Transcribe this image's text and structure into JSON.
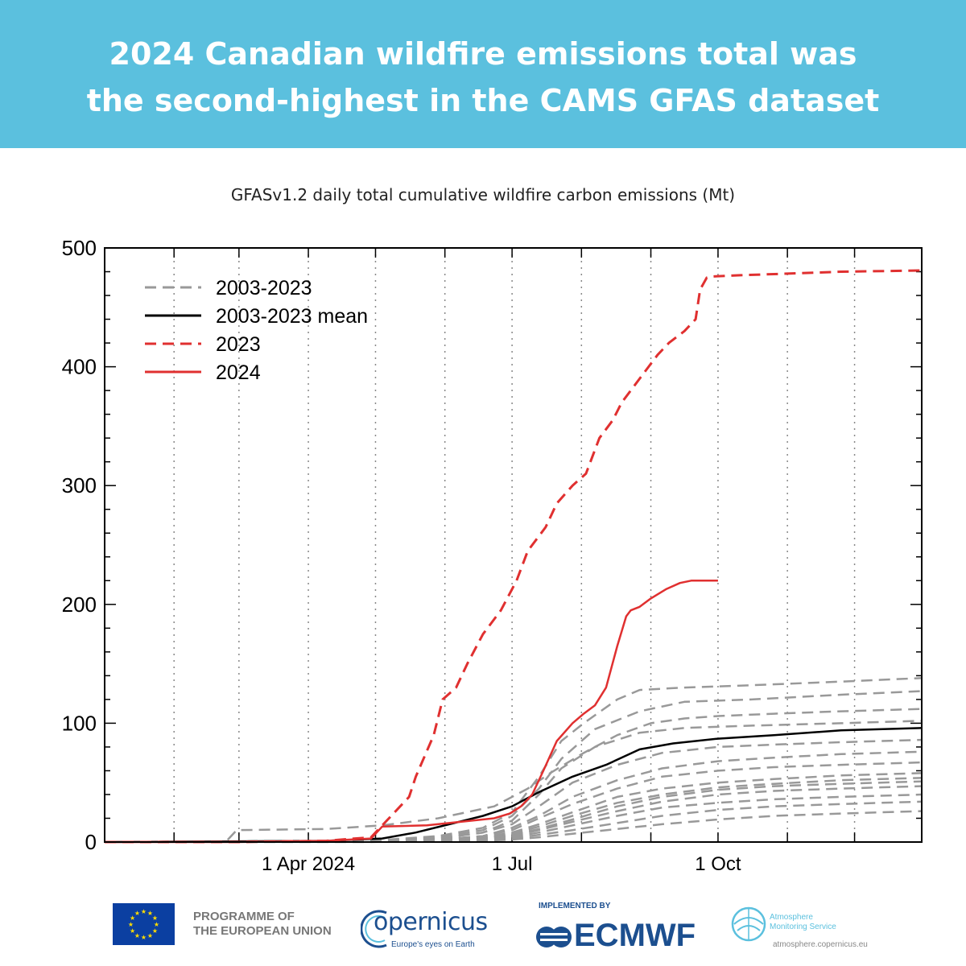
{
  "banner": {
    "title_line1": "2024 Canadian wildfire emissions total was",
    "title_line2": "the second-highest in the CAMS GFAS dataset",
    "bg_color": "#5bc0de"
  },
  "chart_title": "GFASv1.2 daily total cumulative wildfire carbon emissions (Mt)",
  "chart_data": {
    "type": "line",
    "title": "GFASv1.2 daily total cumulative wildfire carbon emissions (Mt)",
    "xlabel": "",
    "ylabel": "",
    "x_unit": "day of year",
    "xlim": [
      1,
      366
    ],
    "ylim": [
      0,
      500
    ],
    "grid": "vertical dotted lines at month starts",
    "legend_position": "top-left",
    "y_ticks": [
      0,
      100,
      200,
      300,
      400,
      500
    ],
    "x_ticks": [
      {
        "day": 92,
        "label": "1 Apr 2024"
      },
      {
        "day": 183,
        "label": "1 Jul"
      },
      {
        "day": 275,
        "label": "1 Oct"
      }
    ],
    "month_starts": [
      32,
      61,
      92,
      122,
      153,
      183,
      214,
      245,
      275,
      306,
      336
    ],
    "legend": [
      {
        "label": "2003-2023",
        "color": "#999999",
        "dash": true
      },
      {
        "label": "2003-2023 mean",
        "color": "#000000",
        "dash": false
      },
      {
        "label": "2023",
        "color": "#e03030",
        "dash": true
      },
      {
        "label": "2024",
        "color": "#e03030",
        "dash": false
      }
    ],
    "series": [
      {
        "name": "2023",
        "color": "#e03030",
        "dash": true,
        "width": 3,
        "x": [
          1,
          60,
          100,
          120,
          128,
          133,
          137,
          140,
          148,
          152,
          158,
          163,
          170,
          178,
          185,
          190,
          198,
          203,
          210,
          216,
          222,
          228,
          232,
          238,
          244,
          248,
          253,
          260,
          265,
          267,
          270,
          273,
          285,
          300,
          330,
          366
        ],
        "y": [
          0,
          0,
          1,
          4,
          20,
          30,
          38,
          55,
          90,
          120,
          130,
          150,
          175,
          195,
          220,
          245,
          265,
          285,
          300,
          310,
          340,
          355,
          370,
          385,
          400,
          410,
          420,
          430,
          440,
          465,
          475,
          476,
          477,
          478,
          480,
          481
        ]
      },
      {
        "name": "2024",
        "color": "#e03030",
        "dash": false,
        "width": 2.5,
        "x": [
          1,
          60,
          100,
          120,
          125,
          145,
          160,
          175,
          182,
          187,
          192,
          197,
          203,
          210,
          215,
          220,
          225,
          230,
          234,
          236,
          240,
          245,
          252,
          258,
          263,
          268,
          275
        ],
        "y": [
          0,
          0,
          1,
          3,
          13,
          14,
          17,
          20,
          24,
          30,
          40,
          60,
          85,
          100,
          108,
          115,
          130,
          165,
          190,
          195,
          198,
          205,
          213,
          218,
          220,
          220,
          220
        ]
      },
      {
        "name": "2003-2023 mean",
        "color": "#000000",
        "dash": false,
        "width": 2.5,
        "x": [
          1,
          100,
          125,
          140,
          155,
          170,
          183,
          195,
          210,
          225,
          240,
          255,
          275,
          300,
          330,
          366
        ],
        "y": [
          0,
          1,
          3,
          8,
          15,
          22,
          30,
          42,
          55,
          65,
          78,
          83,
          87,
          90,
          94,
          96
        ]
      },
      {
        "name": "",
        "color": "#999999",
        "dash": true,
        "width": 2.5,
        "x": [
          1,
          55,
          60,
          100,
          125,
          150,
          175,
          190,
          200,
          215,
          230,
          245,
          260,
          275,
          300,
          330,
          366
        ],
        "y": [
          0,
          0,
          10,
          11,
          14,
          20,
          30,
          45,
          58,
          75,
          90,
          100,
          104,
          106,
          108,
          110,
          112
        ]
      },
      {
        "name": "",
        "color": "#999999",
        "dash": true,
        "width": 2.5,
        "x": [
          1,
          120,
          150,
          170,
          183,
          195,
          205,
          215,
          230,
          240,
          260,
          290,
          330,
          366
        ],
        "y": [
          0,
          1,
          5,
          12,
          25,
          55,
          85,
          100,
          120,
          128,
          130,
          132,
          135,
          138
        ]
      },
      {
        "name": "",
        "color": "#999999",
        "dash": true,
        "width": 2.5,
        "x": [
          1,
          120,
          150,
          170,
          183,
          195,
          205,
          220,
          240,
          260,
          290,
          330,
          366
        ],
        "y": [
          0,
          1,
          4,
          10,
          22,
          45,
          70,
          95,
          110,
          118,
          120,
          124,
          127
        ]
      },
      {
        "name": "",
        "color": "#999999",
        "dash": true,
        "width": 2.5,
        "x": [
          1,
          120,
          150,
          170,
          183,
          195,
          205,
          220,
          240,
          260,
          290,
          330,
          366
        ],
        "y": [
          0,
          1,
          3,
          8,
          18,
          40,
          62,
          80,
          92,
          96,
          98,
          100,
          102
        ]
      },
      {
        "name": "",
        "color": "#999999",
        "dash": true,
        "width": 2.5,
        "x": [
          1,
          120,
          150,
          170,
          183,
          195,
          210,
          230,
          250,
          275,
          300,
          330,
          366
        ],
        "y": [
          0,
          1,
          3,
          8,
          15,
          30,
          50,
          65,
          75,
          80,
          82,
          84,
          86
        ]
      },
      {
        "name": "",
        "color": "#999999",
        "dash": true,
        "width": 2.5,
        "x": [
          1,
          120,
          150,
          170,
          183,
          195,
          210,
          230,
          250,
          275,
          300,
          330,
          366
        ],
        "y": [
          0,
          1,
          2,
          5,
          12,
          22,
          38,
          52,
          62,
          68,
          71,
          74,
          76
        ]
      },
      {
        "name": "",
        "color": "#999999",
        "dash": true,
        "width": 2.5,
        "x": [
          1,
          120,
          150,
          170,
          183,
          195,
          210,
          230,
          250,
          275,
          300,
          330,
          366
        ],
        "y": [
          0,
          1,
          2,
          5,
          10,
          20,
          32,
          45,
          55,
          60,
          63,
          65,
          67
        ]
      },
      {
        "name": "",
        "color": "#999999",
        "dash": true,
        "width": 2.5,
        "x": [
          1,
          120,
          150,
          170,
          183,
          195,
          210,
          230,
          250,
          275,
          300,
          330,
          366
        ],
        "y": [
          0,
          1,
          2,
          4,
          8,
          15,
          25,
          38,
          45,
          50,
          53,
          56,
          58
        ]
      },
      {
        "name": "",
        "color": "#999999",
        "dash": true,
        "width": 2.5,
        "x": [
          1,
          120,
          150,
          170,
          183,
          195,
          210,
          230,
          250,
          275,
          300,
          330,
          366
        ],
        "y": [
          0,
          1,
          2,
          3,
          7,
          13,
          22,
          33,
          40,
          46,
          49,
          52,
          54
        ]
      },
      {
        "name": "",
        "color": "#999999",
        "dash": true,
        "width": 2.5,
        "x": [
          1,
          120,
          150,
          170,
          183,
          195,
          210,
          230,
          250,
          275,
          300,
          330,
          366
        ],
        "y": [
          0,
          1,
          2,
          3,
          6,
          11,
          19,
          30,
          38,
          44,
          47,
          49,
          51
        ]
      },
      {
        "name": "",
        "color": "#999999",
        "dash": true,
        "width": 2.5,
        "x": [
          1,
          120,
          150,
          170,
          183,
          195,
          210,
          230,
          250,
          275,
          300,
          330,
          366
        ],
        "y": [
          0,
          1,
          1,
          3,
          5,
          10,
          17,
          26,
          34,
          40,
          43,
          45,
          47
        ]
      },
      {
        "name": "",
        "color": "#999999",
        "dash": true,
        "width": 2.5,
        "x": [
          1,
          120,
          150,
          170,
          183,
          195,
          210,
          230,
          250,
          275,
          300,
          330,
          366
        ],
        "y": [
          0,
          1,
          1,
          2,
          4,
          8,
          14,
          22,
          29,
          33,
          36,
          38,
          40
        ]
      },
      {
        "name": "",
        "color": "#999999",
        "dash": true,
        "width": 2.5,
        "x": [
          1,
          120,
          150,
          170,
          183,
          195,
          210,
          230,
          250,
          275,
          300,
          330,
          366
        ],
        "y": [
          0,
          1,
          1,
          2,
          3,
          6,
          10,
          16,
          22,
          27,
          30,
          32,
          34
        ]
      },
      {
        "name": "",
        "color": "#999999",
        "dash": true,
        "width": 2.5,
        "x": [
          1,
          120,
          150,
          170,
          183,
          195,
          210,
          230,
          250,
          275,
          300,
          330,
          366
        ],
        "y": [
          0,
          0,
          1,
          1,
          2,
          4,
          7,
          11,
          15,
          19,
          22,
          24,
          26
        ]
      }
    ]
  },
  "footer": {
    "eu_text": "PROGRAMME OF\nTHE EUROPEAN UNION",
    "copernicus_word": "opernicus",
    "copernicus_tagline": "Europe's eyes on Earth",
    "implemented_by": "IMPLEMENTED BY",
    "ecmwf": "ECMWF",
    "cams_name": "Atmosphere\nMonitoring Service",
    "cams_url": "atmosphere.copernicus.eu"
  }
}
